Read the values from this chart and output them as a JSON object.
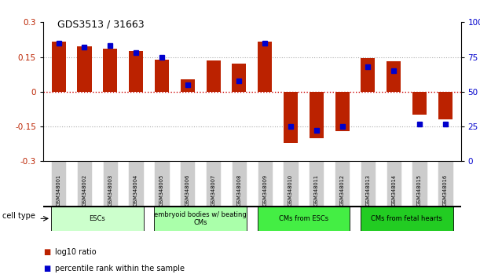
{
  "title": "GDS3513 / 31663",
  "samples": [
    "GSM348001",
    "GSM348002",
    "GSM348003",
    "GSM348004",
    "GSM348005",
    "GSM348006",
    "GSM348007",
    "GSM348008",
    "GSM348009",
    "GSM348010",
    "GSM348011",
    "GSM348012",
    "GSM348013",
    "GSM348014",
    "GSM348015",
    "GSM348016"
  ],
  "log10_ratio": [
    0.215,
    0.195,
    0.185,
    0.175,
    0.14,
    0.055,
    0.135,
    0.12,
    0.215,
    -0.22,
    -0.2,
    -0.17,
    0.145,
    0.13,
    -0.1,
    -0.12
  ],
  "percentile_rank_raw": [
    85,
    82,
    83,
    78,
    75,
    55,
    null,
    58,
    85,
    25,
    22,
    25,
    68,
    65,
    27,
    27
  ],
  "ylim": [
    -0.3,
    0.3
  ],
  "yticks_left": [
    -0.3,
    -0.15,
    0,
    0.15,
    0.3
  ],
  "yticks_right": [
    0,
    25,
    50,
    75,
    100
  ],
  "bar_color_red": "#bb2200",
  "bar_color_blue": "#0000cc",
  "hline_color": "#cc0000",
  "dotted_color": "#aaaaaa",
  "cell_type_groups": [
    {
      "label": "ESCs",
      "start": 0,
      "end": 3,
      "color": "#ccffcc"
    },
    {
      "label": "embryoid bodies w/ beating\nCMs",
      "start": 4,
      "end": 7,
      "color": "#aaffaa"
    },
    {
      "label": "CMs from ESCs",
      "start": 8,
      "end": 11,
      "color": "#44ee44"
    },
    {
      "label": "CMs from fetal hearts",
      "start": 12,
      "end": 15,
      "color": "#22cc22"
    }
  ],
  "cell_type_label": "cell type",
  "legend_red": "log10 ratio",
  "legend_blue": "percentile rank within the sample",
  "bar_width": 0.55
}
